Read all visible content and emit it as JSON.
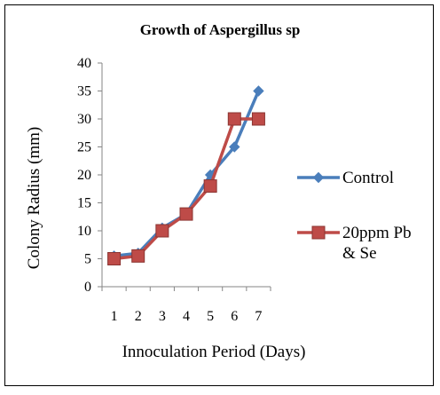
{
  "chart_data": {
    "type": "line",
    "title": "Growth of Aspergillus sp",
    "xlabel": "Innoculation Period (Days)",
    "ylabel": "Colony Radius (mm)",
    "categories": [
      "1",
      "2",
      "3",
      "4",
      "5",
      "6",
      "7"
    ],
    "ylim": [
      0,
      40
    ],
    "yticks": [
      "0",
      "5",
      "10",
      "15",
      "20",
      "25",
      "30",
      "35",
      "40"
    ],
    "grid": false,
    "legend_position": "right",
    "series": [
      {
        "name": "Control",
        "values": [
          5.5,
          6,
          10.5,
          13,
          20,
          25,
          35
        ],
        "color": "#4a7ebb",
        "marker": "diamond"
      },
      {
        "name": "20ppm Pb & Se",
        "values": [
          5,
          5.5,
          10,
          13,
          18,
          30,
          30
        ],
        "color": "#be4b48",
        "marker": "square"
      }
    ],
    "legend": [
      {
        "lines": [
          "Control"
        ]
      },
      {
        "lines": [
          "20ppm Pb",
          "& Se"
        ]
      }
    ]
  }
}
